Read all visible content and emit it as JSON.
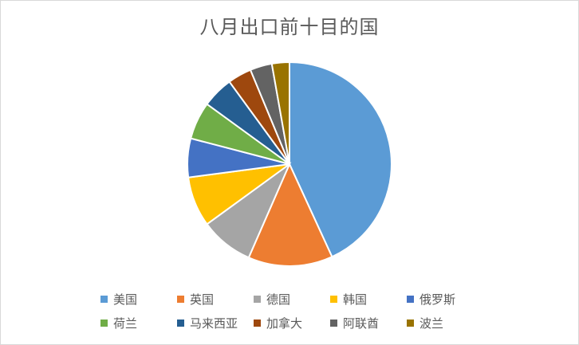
{
  "chart_data": {
    "type": "pie",
    "title": "八月出口前十目的国",
    "categories": [
      "美国",
      "英国",
      "德国",
      "韩国",
      "俄罗斯",
      "荷兰",
      "马来西亚",
      "加拿大",
      "阿联酋",
      "波兰"
    ],
    "values": [
      43.5,
      13.5,
      8.5,
      8.0,
      6.2,
      6.0,
      5.0,
      3.8,
      3.5,
      2.8
    ],
    "colors": [
      "#5b9bd5",
      "#ed7d31",
      "#a5a5a5",
      "#ffc000",
      "#4472c4",
      "#70ad47",
      "#255e91",
      "#9e480e",
      "#636363",
      "#997300"
    ],
    "legend_position": "bottom"
  }
}
